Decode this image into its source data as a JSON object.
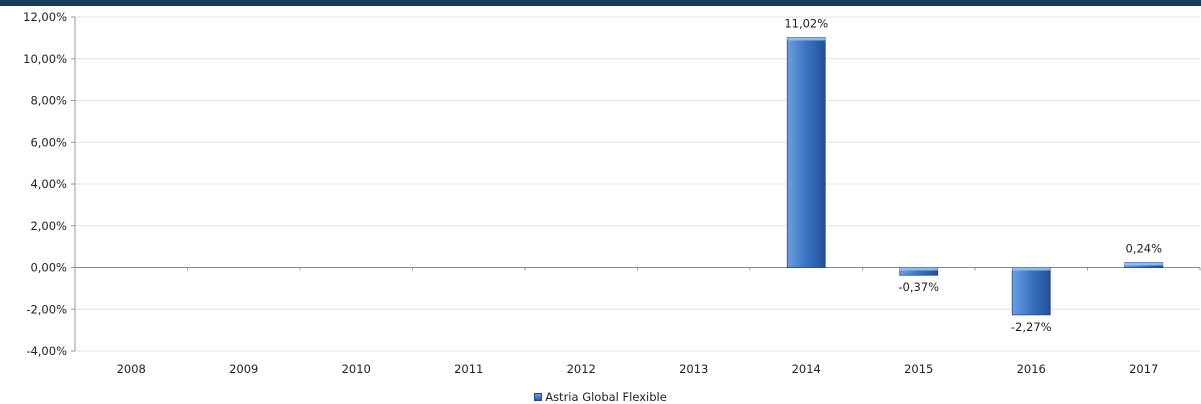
{
  "chart_data": {
    "type": "bar",
    "categories": [
      "2008",
      "2009",
      "2010",
      "2011",
      "2012",
      "2013",
      "2014",
      "2015",
      "2016",
      "2017"
    ],
    "series": [
      {
        "name": "Astria Global Flexible",
        "values": [
          null,
          null,
          null,
          null,
          null,
          null,
          11.02,
          -0.37,
          -2.27,
          0.24
        ],
        "data_labels": [
          "",
          "",
          "",
          "",
          "",
          "",
          "11,02%",
          "-0,37%",
          "-2,27%",
          "0,24%"
        ]
      }
    ],
    "y_ticks": [
      12,
      10,
      8,
      6,
      4,
      2,
      0,
      -2,
      -4
    ],
    "y_tick_labels": [
      "12,00%",
      "10,00%",
      "8,00%",
      "6,00%",
      "4,00%",
      "2,00%",
      "0,00%",
      "-2,00%",
      "-4,00%"
    ],
    "ylim": [
      -4,
      12
    ],
    "grid": true,
    "legend_position": "bottom",
    "legend_label": "Astria Global Flexible",
    "bar_color": "#3a73c4",
    "title": "",
    "xlabel": "",
    "ylabel": ""
  }
}
